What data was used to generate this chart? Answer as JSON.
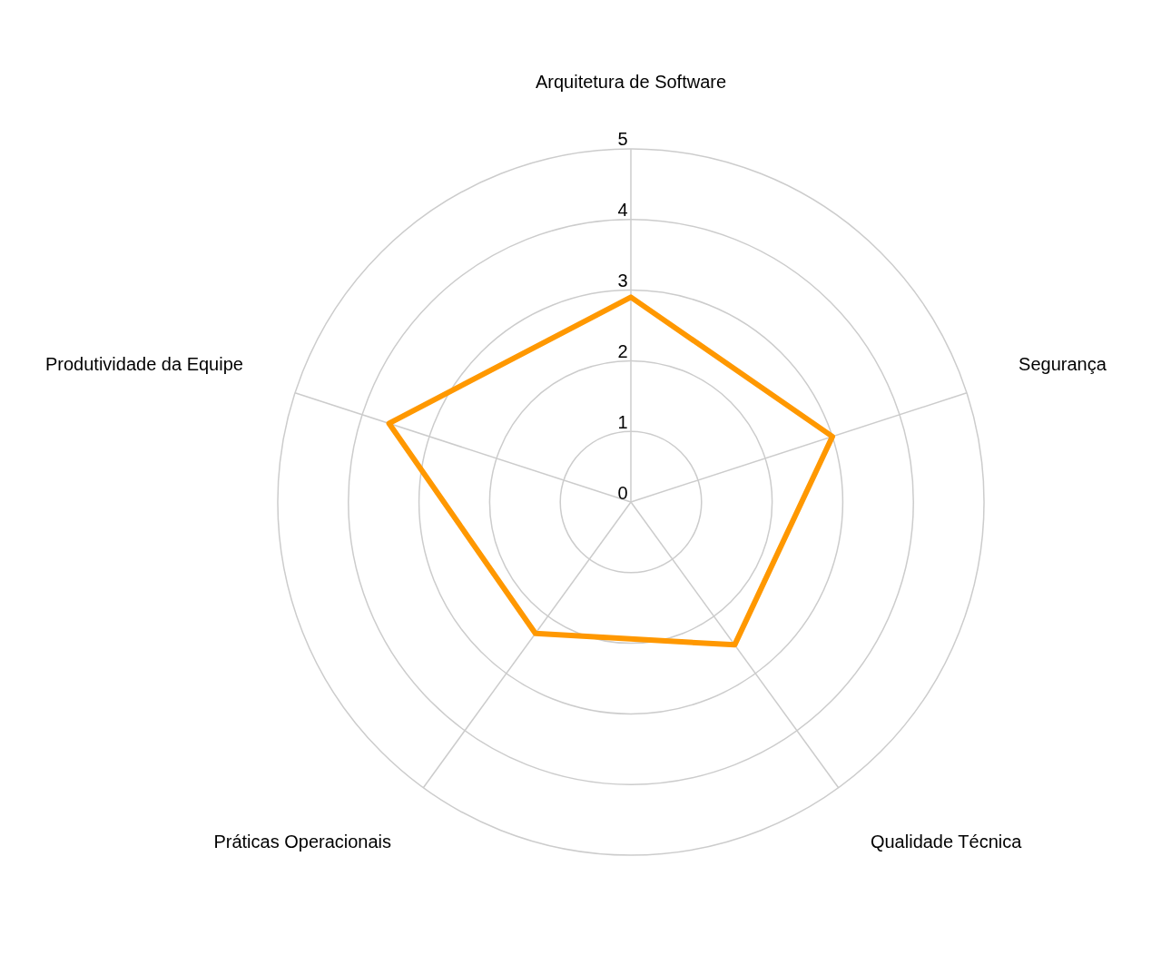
{
  "chart_data": {
    "type": "radar",
    "categories": [
      "Arquitetura de Software",
      "Segurança",
      "Qualidade Técnica",
      "Práticas Operacionais",
      "Produtividade da Equipe"
    ],
    "series": [
      {
        "color": "#ff9800",
        "values": [
          2.9,
          3.0,
          2.5,
          2.3,
          3.6
        ]
      }
    ],
    "ylim": [
      0,
      5
    ],
    "yticks": [
      0,
      1,
      2,
      3,
      4,
      5
    ],
    "grid": true,
    "legend": false,
    "marker": "none",
    "line_style": "solid"
  }
}
